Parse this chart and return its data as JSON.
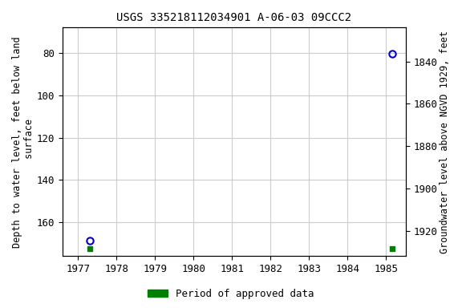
{
  "title": "USGS 335218112034901 A-06-03 09CCC2",
  "ylabel_left": "Depth to water level, feet below land\n surface",
  "ylabel_right": "Groundwater level above NGVD 1929, feet",
  "background_color": "#ffffff",
  "plot_bg_color": "#ffffff",
  "grid_color": "#cccccc",
  "xlim": [
    1976.6,
    1985.5
  ],
  "ylim_left": [
    68,
    176
  ],
  "ylim_right": [
    1824,
    1932
  ],
  "xticks": [
    1977,
    1978,
    1979,
    1980,
    1981,
    1982,
    1983,
    1984,
    1985
  ],
  "yticks_left": [
    80,
    100,
    120,
    140,
    160
  ],
  "yticks_right": [
    1840,
    1860,
    1880,
    1900,
    1920
  ],
  "blue_circle_points": [
    {
      "x": 1977.3,
      "y_left": 168.5
    },
    {
      "x": 1985.15,
      "y_left": 80.5
    }
  ],
  "green_square_points": [
    {
      "x": 1977.3,
      "y_left": 172.5
    },
    {
      "x": 1985.15,
      "y_left": 172.5
    }
  ],
  "legend_label": "Period of approved data",
  "legend_color": "#008000",
  "blue_color": "#0000cc",
  "title_fontsize": 10,
  "axis_fontsize": 8.5,
  "tick_fontsize": 9
}
